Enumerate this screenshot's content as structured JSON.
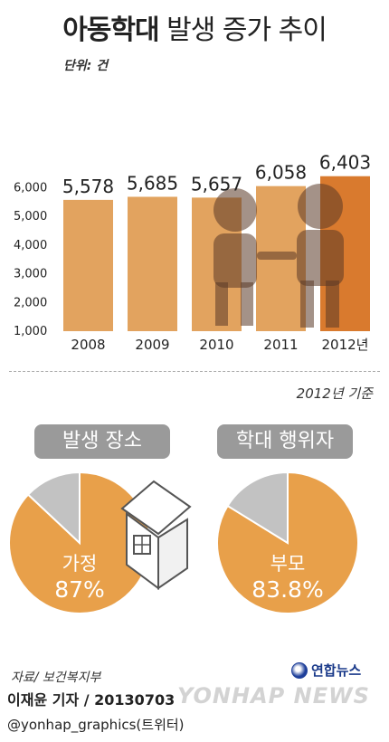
{
  "title_bold": "아동학대",
  "title_rest": " 발생 증가 추이",
  "unit_label": "단위: 건",
  "chart_data": [
    {
      "type": "bar",
      "categories": [
        "2008",
        "2009",
        "2010",
        "2011",
        "2012년"
      ],
      "values": [
        5578,
        5685,
        5657,
        6058,
        6403
      ],
      "value_labels": [
        "5,578",
        "5,685",
        "5,657",
        "6,058",
        "6,403"
      ],
      "title": "아동학대 발생 증가 추이",
      "ylabel": "단위: 건",
      "ylim": [
        1000,
        6000
      ],
      "yticks": [
        1000,
        2000,
        3000,
        4000,
        5000,
        6000
      ],
      "ytick_labels": [
        "1,000",
        "2,000",
        "3,000",
        "4,000",
        "5,000",
        "6,000"
      ],
      "highlight_category": "2012년",
      "colors": {
        "bar": "#e2a35f",
        "highlight": "#d97a2e"
      }
    },
    {
      "type": "pie",
      "title": "발생 장소",
      "slices": [
        {
          "label": "가정",
          "value": 87
        },
        {
          "label": "",
          "value": 13
        }
      ],
      "value_label": "87%",
      "colors": {
        "main": "#e8a04a",
        "other": "#c2c2c2"
      }
    },
    {
      "type": "pie",
      "title": "학대 행위자",
      "slices": [
        {
          "label": "부모",
          "value": 83.8
        },
        {
          "label": "",
          "value": 16.2
        }
      ],
      "value_label": "83.8%",
      "colors": {
        "main": "#e8a04a",
        "other": "#c2c2c2"
      }
    }
  ],
  "basis_note": "2012년 기준",
  "source": "자료/ 보건복지부",
  "logo_text": "연합뉴스",
  "byline": "이재윤 기자 / 20130703",
  "watermark": "YONHAP NEWS",
  "handle": "@yonhap_graphics(트위터)"
}
